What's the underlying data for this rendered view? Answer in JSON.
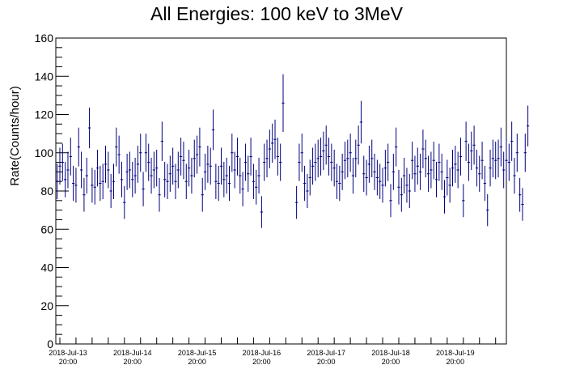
{
  "chart_data": {
    "type": "scatter",
    "title": "All Energies:  100 keV to 3MeV",
    "xlabel": "",
    "ylabel": "Rate(Counts/hour)",
    "ylim": [
      0,
      160
    ],
    "xlim_hours": [
      -4.5,
      163
    ],
    "y_ticks": [
      "0",
      "20",
      "40",
      "60",
      "80",
      "100",
      "120",
      "140",
      "160"
    ],
    "x_ticks": [
      {
        "date": "2018-Jul-13",
        "time": "20:00",
        "hour": 0
      },
      {
        "date": "2018-Jul-14",
        "time": "20:00",
        "hour": 24
      },
      {
        "date": "2018-Jul-15",
        "time": "20:00",
        "hour": 48
      },
      {
        "date": "2018-Jul-16",
        "time": "20:00",
        "hour": 72
      },
      {
        "date": "2018-Jul-17",
        "time": "20:00",
        "hour": 96
      },
      {
        "date": "2018-Jul-18",
        "time": "20:00",
        "hour": 120
      },
      {
        "date": "2018-Jul-19",
        "time": "20:00",
        "hour": 144
      }
    ],
    "marker_color": "#00007f",
    "grid": false,
    "legend": "none",
    "series": [
      {
        "segments": [
          {
            "x_start_hour": -4.5,
            "values": [
              85,
              93,
              95,
              86,
              91,
              98,
              84,
              83,
              103,
              91,
              78,
              88,
              113,
              83,
              82,
              92,
              84,
              85,
              94,
              91,
              80,
              85,
              103,
              99,
              86,
              74,
              90,
              91,
              86,
              88,
              94,
              100,
              81,
              100,
              95,
              88,
              91,
              92,
              78,
              106,
              86,
              85,
              89,
              93,
              85,
              91,
              98,
              96,
              85,
              92,
              88,
              97,
              99,
              103,
              78,
              90,
              94,
              93,
              112,
              85,
              84,
              93,
              86,
              88,
              84,
              100,
              91,
              98,
              88,
              81,
              95,
              89,
              98,
              85,
              82,
              88,
              69,
              95,
              97,
              102,
              105,
              107,
              98,
              95,
              126
            ]
          },
          {
            "x_start_hour": 84.5,
            "values": [
              74,
              95,
              100,
              84,
              80,
              87,
              93,
              95,
              97,
              98,
              101,
              104,
              98,
              95,
              92,
              85,
              84,
              90,
              96,
              97,
              100,
              88,
              97,
              104,
              116,
              89,
              87,
              94,
              97,
              90,
              87,
              85,
              83,
              92,
              95,
              75,
              90,
              103,
              82,
              78,
              88,
              83,
              80,
              96,
              89,
              93,
              90,
              102,
              97,
              89,
              91,
              96,
              86,
              95,
              90,
              77,
              87,
              83,
              92,
              94,
              91,
              98,
              75,
              106,
              95,
              101,
              104,
              92,
              89,
              96,
              84,
              70,
              92,
              97,
              96,
              97,
              103,
              91,
              96,
              95,
              106,
              88,
              100,
              78,
              73,
              100,
              114
            ]
          }
        ]
      }
    ]
  }
}
